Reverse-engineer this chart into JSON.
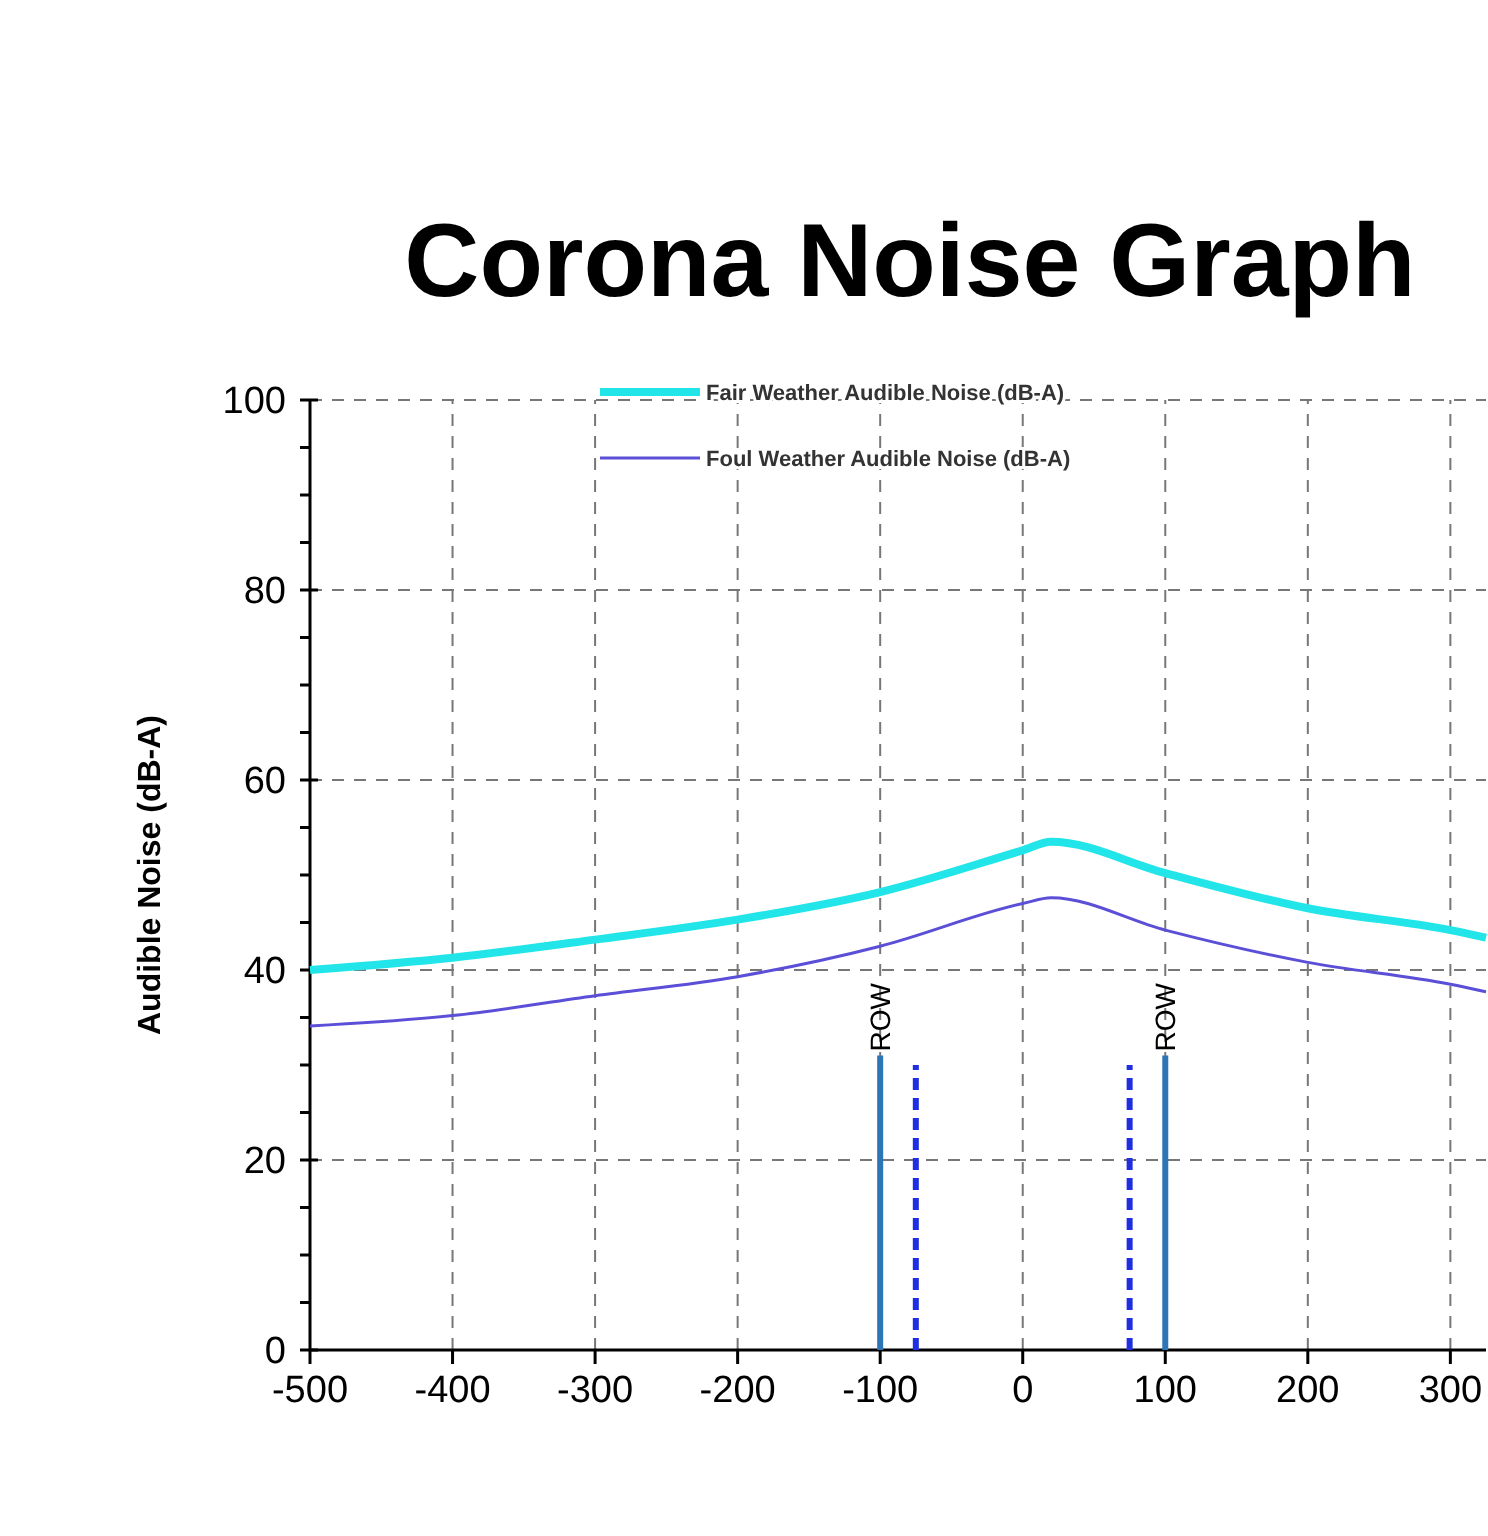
{
  "chart_data": {
    "type": "line",
    "title": "Corona Noise Graph",
    "ylabel": "Audible Noise (dB-A)",
    "xlim": [
      -500,
      325
    ],
    "xticks": [
      -500,
      -400,
      -300,
      -200,
      -100,
      0,
      100,
      200,
      300
    ],
    "ylim": [
      0,
      100
    ],
    "yticks": [
      0,
      {
        "value": 5,
        "label": null
      },
      {
        "value": 10,
        "label": null
      },
      {
        "value": 15,
        "label": null
      },
      20,
      {
        "value": 25,
        "label": null
      },
      {
        "value": 30,
        "label": null
      },
      {
        "value": 35,
        "label": null
      },
      40,
      {
        "value": 45,
        "label": null
      },
      {
        "value": 50,
        "label": null
      },
      {
        "value": 55,
        "label": null
      },
      60,
      {
        "value": 65,
        "label": null
      },
      {
        "value": 70,
        "label": null
      },
      {
        "value": 75,
        "label": null
      },
      80,
      {
        "value": 85,
        "label": null
      },
      {
        "value": 90,
        "label": null
      },
      {
        "value": 95,
        "label": null
      },
      100
    ],
    "grid": true,
    "legend": "top",
    "series": [
      {
        "name": "Fair Weather  Audible Noise  (dB-A)",
        "color": "#22e5ea",
        "x": [
          -500,
          -400,
          -300,
          -200,
          -100,
          0,
          20,
          100,
          200,
          300,
          325
        ],
        "values": [
          40.0,
          41.3,
          43.2,
          45.3,
          48.2,
          52.6,
          53.5,
          50.2,
          46.5,
          44.2,
          43.4
        ]
      },
      {
        "name": "Foul Weather  Audible Noise  (dB-A)",
        "color": "#5b4fd8",
        "x": [
          -500,
          -400,
          -300,
          -200,
          -100,
          0,
          20,
          100,
          200,
          300,
          325
        ],
        "values": [
          34.1,
          35.2,
          37.3,
          39.3,
          42.5,
          47.0,
          47.6,
          44.2,
          40.8,
          38.5,
          37.7
        ]
      },
      {
        "color": "#2e75b6",
        "x": [
          -100,
          -100
        ],
        "values": [
          0,
          31
        ]
      },
      {
        "color": "#2e75b6",
        "x": [
          100,
          100
        ],
        "values": [
          0,
          31
        ]
      },
      {
        "color": "#1f2ee0",
        "line_style": "dashed",
        "x": [
          -75,
          -75
        ],
        "values": [
          0,
          30
        ]
      },
      {
        "color": "#1f2ee0",
        "line_style": "dashed",
        "x": [
          75,
          75
        ],
        "values": [
          0,
          30
        ]
      }
    ],
    "annotations": [
      {
        "text": "ROW",
        "x": -100,
        "y": 31
      },
      {
        "text": "ROW",
        "x": 100,
        "y": 31
      }
    ]
  }
}
